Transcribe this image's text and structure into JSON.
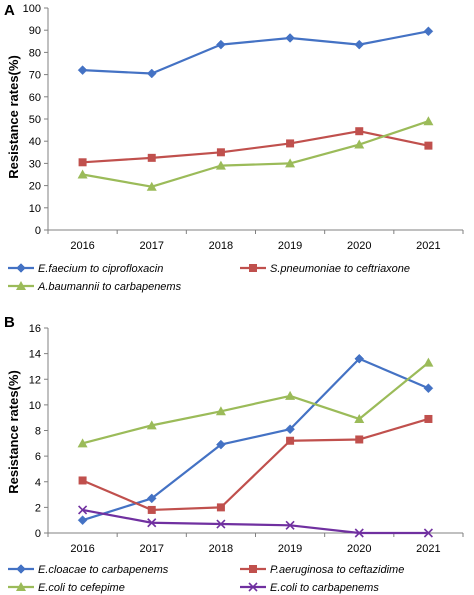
{
  "panels": [
    {
      "label": "A"
    },
    {
      "label": "B"
    }
  ],
  "chart_data": [
    {
      "type": "line",
      "ylabel": "Resistance rates(%)",
      "xlabel": "",
      "x": [
        "2016",
        "2017",
        "2018",
        "2019",
        "2020",
        "2021"
      ],
      "ylim": [
        0,
        100
      ],
      "yticks": [
        0,
        10,
        20,
        30,
        40,
        50,
        60,
        70,
        80,
        90,
        100
      ],
      "grid": false,
      "legend_position": "bottom",
      "series": [
        {
          "name": "E.faecium to ciprofloxacin",
          "color": "#4472c4",
          "marker": "diamond",
          "values": [
            72,
            70.5,
            83.5,
            86.5,
            83.5,
            89.5
          ]
        },
        {
          "name": "S.pneumoniae to ceftriaxone",
          "color": "#c0504d",
          "marker": "square",
          "values": [
            30.5,
            32.5,
            35,
            39,
            44.5,
            38
          ]
        },
        {
          "name": "A.baumannii to carbapenems",
          "color": "#9bbb59",
          "marker": "triangle",
          "values": [
            25,
            19.5,
            29,
            30,
            38.5,
            49
          ]
        }
      ]
    },
    {
      "type": "line",
      "ylabel": "Resistance rates(%)",
      "xlabel": "",
      "x": [
        "2016",
        "2017",
        "2018",
        "2019",
        "2020",
        "2021"
      ],
      "ylim": [
        0,
        16
      ],
      "yticks": [
        0,
        2,
        4,
        6,
        8,
        10,
        12,
        14,
        16
      ],
      "grid": false,
      "legend_position": "bottom",
      "series": [
        {
          "name": "E.cloacae to carbapenems",
          "color": "#4472c4",
          "marker": "diamond",
          "values": [
            1,
            2.7,
            6.9,
            8.1,
            13.6,
            11.3
          ]
        },
        {
          "name": "P.aeruginosa to ceftazidime",
          "color": "#c0504d",
          "marker": "square",
          "values": [
            4.1,
            1.8,
            2.0,
            7.2,
            7.3,
            8.9
          ]
        },
        {
          "name": "E.coli to cefepime",
          "color": "#9bbb59",
          "marker": "triangle",
          "values": [
            7.0,
            8.4,
            9.5,
            10.7,
            8.9,
            13.3
          ]
        },
        {
          "name": "E.coli to carbapenems",
          "color": "#7030a0",
          "marker": "x",
          "values": [
            1.8,
            0.8,
            0.7,
            0.6,
            0.0,
            0.0
          ]
        }
      ]
    }
  ]
}
